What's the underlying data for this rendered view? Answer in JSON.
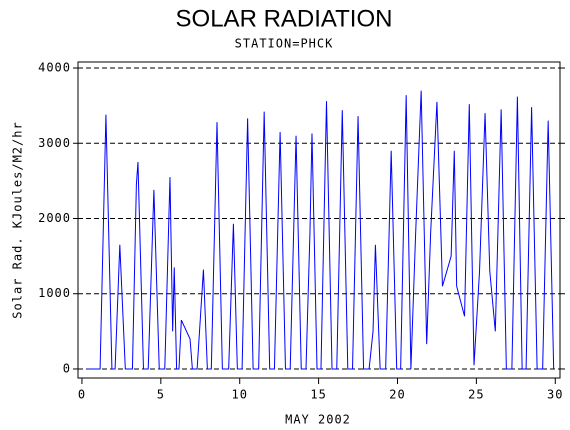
{
  "chart_data": {
    "type": "line",
    "title": "SOLAR RADIATION",
    "subtitle": "STATION=PHCK",
    "x_label": "MAY 2002",
    "y_label": "Solar Rad. KJoules/M2/hr",
    "xlim": [
      -0.25,
      30.3
    ],
    "xticks": [
      0,
      5,
      10,
      15,
      20,
      25,
      30
    ],
    "ylim": [
      -120,
      4080
    ],
    "yticks": [
      0,
      1000,
      2000,
      3000,
      4000
    ],
    "grid": true,
    "x": [
      0.3,
      1.15,
      1.52,
      1.9,
      2.1,
      2.4,
      2.75,
      3.2,
      3.45,
      3.55,
      3.9,
      4.2,
      4.56,
      4.9,
      5.25,
      5.58,
      5.75,
      5.85,
      6.0,
      6.15,
      6.3,
      6.85,
      7.0,
      7.3,
      7.7,
      7.95,
      8.2,
      8.56,
      8.9,
      9.3,
      9.6,
      9.85,
      10.15,
      10.5,
      10.85,
      11.2,
      11.55,
      11.9,
      12.2,
      12.56,
      12.9,
      13.2,
      13.57,
      13.9,
      14.2,
      14.45,
      14.58,
      14.9,
      15.15,
      15.5,
      15.85,
      16.15,
      16.5,
      16.85,
      17.15,
      17.5,
      17.85,
      18.2,
      18.45,
      18.6,
      18.9,
      19.25,
      19.6,
      19.95,
      20.2,
      20.55,
      20.85,
      21.15,
      21.5,
      21.85,
      22.1,
      22.5,
      22.85,
      23.4,
      23.6,
      23.75,
      24.25,
      24.55,
      24.85,
      25.2,
      25.55,
      25.85,
      26.2,
      26.57,
      26.9,
      27.25,
      27.6,
      27.9,
      28.15,
      28.5,
      28.85,
      29.2,
      29.55,
      29.9
    ],
    "series": [
      {
        "color": "#0000ff",
        "values": [
          0,
          0,
          3380,
          0,
          0,
          1650,
          0,
          0,
          2450,
          2750,
          0,
          0,
          2380,
          0,
          0,
          2550,
          500,
          1350,
          0,
          0,
          650,
          400,
          0,
          0,
          1320,
          0,
          0,
          3280,
          0,
          0,
          1930,
          0,
          0,
          3330,
          0,
          0,
          3420,
          0,
          0,
          3150,
          0,
          0,
          3100,
          0,
          0,
          1800,
          3130,
          0,
          0,
          3560,
          0,
          0,
          3440,
          0,
          0,
          3360,
          0,
          0,
          500,
          1650,
          0,
          0,
          2900,
          0,
          0,
          3640,
          0,
          1800,
          3700,
          330,
          1800,
          3550,
          1100,
          1500,
          2900,
          1100,
          700,
          3520,
          50,
          1300,
          3400,
          1300,
          500,
          3450,
          0,
          0,
          3620,
          0,
          0,
          3480,
          0,
          0,
          3300,
          0
        ]
      }
    ]
  }
}
